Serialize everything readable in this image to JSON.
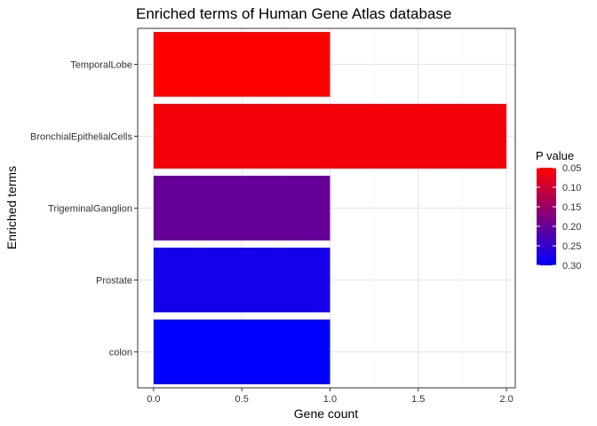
{
  "chart_data": {
    "type": "bar",
    "orientation": "horizontal",
    "title": "Enriched terms of Human Gene Atlas database",
    "xlabel": "Gene count",
    "ylabel": "Enriched terms",
    "categories": [
      "TemporalLobe",
      "BronchialEpithelialCells",
      "TrigeminalGanglion",
      "Prostate",
      "colon"
    ],
    "values": [
      1,
      2,
      1,
      1,
      1
    ],
    "pvalues": [
      0.05,
      0.06,
      0.2,
      0.28,
      0.3
    ],
    "xlim": [
      -0.09,
      2.05
    ],
    "xticks": [
      "0.0",
      "0.5",
      "1.0",
      "1.5",
      "2.0"
    ],
    "grid": true,
    "legend": {
      "title": "P value",
      "placement": "right",
      "labels": [
        "0.05",
        "0.10",
        "0.15",
        "0.20",
        "0.25",
        "0.30"
      ],
      "range": [
        0.05,
        0.3
      ],
      "color_low_p": "#ff0000",
      "color_high_p": "#0000ff"
    }
  }
}
